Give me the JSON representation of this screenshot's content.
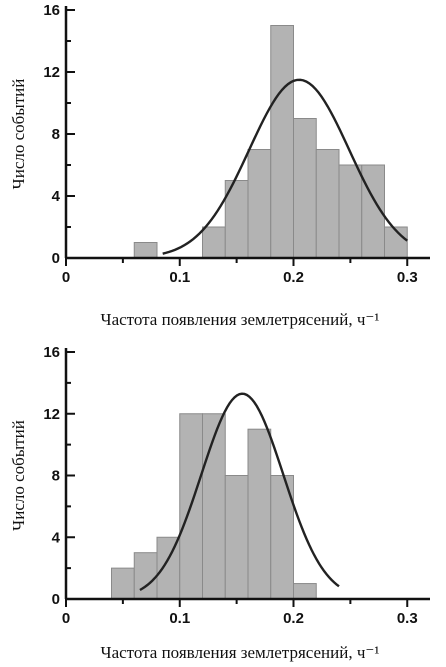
{
  "chart_data": [
    {
      "type": "bar",
      "title": "",
      "xlabel": "Частота появления землетрясений, ч⁻¹",
      "ylabel": "Число событий",
      "xlim": [
        0,
        0.32
      ],
      "ylim": [
        0,
        16
      ],
      "xticks": [
        {
          "value": 0,
          "label": "0"
        },
        {
          "value": 0.1,
          "label": "0.1"
        },
        {
          "value": 0.2,
          "label": "0.2"
        },
        {
          "value": 0.3,
          "label": "0.3"
        }
      ],
      "yticks": [
        {
          "value": 0,
          "label": "0"
        },
        {
          "value": 4,
          "label": "4"
        },
        {
          "value": 8,
          "label": "8"
        },
        {
          "value": 12,
          "label": "12"
        },
        {
          "value": 16,
          "label": "16"
        }
      ],
      "bin_width": 0.02,
      "bins": [
        {
          "x": 0.06,
          "value": 1
        },
        {
          "x": 0.12,
          "value": 2
        },
        {
          "x": 0.14,
          "value": 5
        },
        {
          "x": 0.16,
          "value": 7
        },
        {
          "x": 0.18,
          "value": 15
        },
        {
          "x": 0.2,
          "value": 9
        },
        {
          "x": 0.22,
          "value": 7
        },
        {
          "x": 0.24,
          "value": 6
        },
        {
          "x": 0.26,
          "value": 6
        },
        {
          "x": 0.28,
          "value": 2
        }
      ],
      "fit_curve": {
        "type": "normal",
        "mean": 0.205,
        "sd": 0.044,
        "peak": 11.5,
        "x_range": [
          0.085,
          0.3
        ]
      },
      "grid": false,
      "legend": "none"
    },
    {
      "type": "bar",
      "title": "",
      "xlabel": "Частота появления землетрясений, ч⁻¹",
      "ylabel": "Число событий",
      "xlim": [
        0,
        0.32
      ],
      "ylim": [
        0,
        16
      ],
      "xticks": [
        {
          "value": 0,
          "label": "0"
        },
        {
          "value": 0.1,
          "label": "0.1"
        },
        {
          "value": 0.2,
          "label": "0.2"
        },
        {
          "value": 0.3,
          "label": "0.3"
        }
      ],
      "yticks": [
        {
          "value": 0,
          "label": "0"
        },
        {
          "value": 4,
          "label": "4"
        },
        {
          "value": 8,
          "label": "8"
        },
        {
          "value": 12,
          "label": "12"
        },
        {
          "value": 16,
          "label": "16"
        }
      ],
      "bin_width": 0.02,
      "bins": [
        {
          "x": 0.04,
          "value": 2
        },
        {
          "x": 0.06,
          "value": 3
        },
        {
          "x": 0.08,
          "value": 4
        },
        {
          "x": 0.1,
          "value": 12
        },
        {
          "x": 0.12,
          "value": 12
        },
        {
          "x": 0.14,
          "value": 8
        },
        {
          "x": 0.16,
          "value": 11
        },
        {
          "x": 0.18,
          "value": 8
        },
        {
          "x": 0.2,
          "value": 1
        }
      ],
      "fit_curve": {
        "type": "normal",
        "mean": 0.155,
        "sd": 0.036,
        "peak": 13.3,
        "x_range": [
          0.065,
          0.24
        ]
      },
      "grid": false,
      "legend": "none"
    }
  ]
}
